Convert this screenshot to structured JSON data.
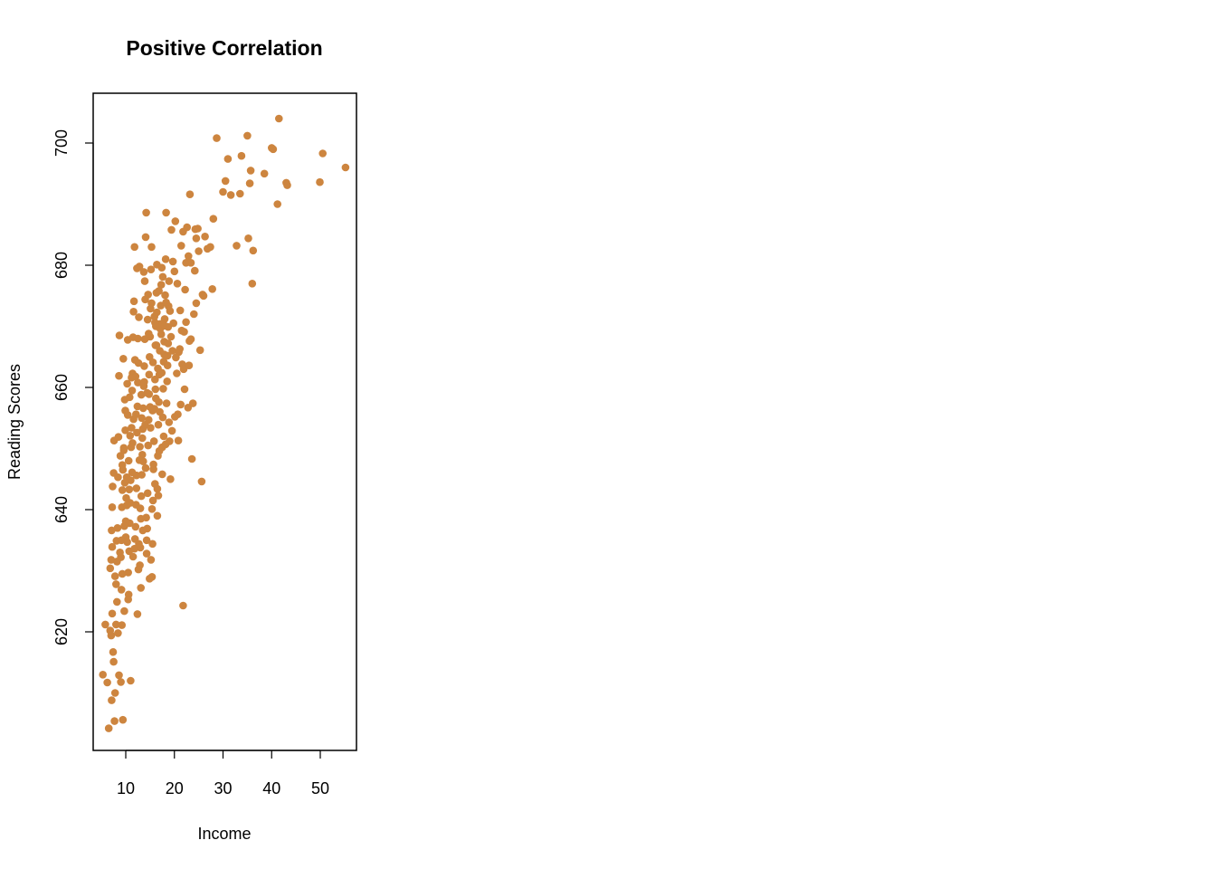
{
  "chart_data": {
    "type": "scatter",
    "title": "Positive Correlation",
    "xlabel": "Income",
    "ylabel": "Reading Scores",
    "xlim": [
      4,
      57
    ],
    "ylim": [
      600,
      708
    ],
    "x_ticks": [
      10,
      20,
      30,
      40,
      50
    ],
    "y_ticks": [
      620,
      640,
      660,
      680,
      700
    ],
    "point_color": "#CD853F",
    "grid": false,
    "legend": "none",
    "points": [
      [
        5.3,
        613.0
      ],
      [
        5.8,
        621.2
      ],
      [
        6.2,
        611.7
      ],
      [
        6.5,
        604.2
      ],
      [
        6.8,
        620.2
      ],
      [
        7.0,
        619.4
      ],
      [
        7.1,
        608.8
      ],
      [
        7.2,
        623.0
      ],
      [
        7.4,
        616.7
      ],
      [
        7.5,
        615.1
      ],
      [
        7.7,
        605.4
      ],
      [
        7.8,
        610.0
      ],
      [
        8.0,
        621.2
      ],
      [
        8.2,
        624.9
      ],
      [
        8.4,
        619.8
      ],
      [
        8.6,
        612.9
      ],
      [
        9.0,
        611.8
      ],
      [
        9.2,
        621.1
      ],
      [
        9.4,
        605.6
      ],
      [
        9.7,
        623.4
      ],
      [
        6.8,
        630.4
      ],
      [
        7.0,
        631.8
      ],
      [
        7.1,
        636.6
      ],
      [
        7.2,
        633.9
      ],
      [
        7.2,
        640.4
      ],
      [
        7.3,
        643.8
      ],
      [
        7.5,
        646.0
      ],
      [
        7.6,
        651.3
      ],
      [
        7.8,
        629.1
      ],
      [
        8.0,
        627.8
      ],
      [
        8.1,
        634.9
      ],
      [
        8.3,
        637.0
      ],
      [
        8.4,
        645.3
      ],
      [
        8.5,
        651.9
      ],
      [
        8.6,
        661.9
      ],
      [
        8.7,
        668.5
      ],
      [
        8.9,
        648.8
      ],
      [
        9.0,
        632.2
      ],
      [
        9.1,
        626.9
      ],
      [
        9.2,
        640.4
      ],
      [
        9.3,
        643.2
      ],
      [
        9.4,
        646.5
      ],
      [
        9.5,
        664.7
      ],
      [
        9.6,
        649.7
      ],
      [
        9.8,
        658.0
      ],
      [
        9.9,
        656.2
      ],
      [
        10.0,
        635.5
      ],
      [
        10.0,
        638.1
      ],
      [
        10.1,
        641.9
      ],
      [
        10.2,
        645.3
      ],
      [
        10.3,
        660.6
      ],
      [
        10.4,
        667.8
      ],
      [
        10.5,
        629.7
      ],
      [
        10.6,
        626.1
      ],
      [
        10.7,
        633.2
      ],
      [
        10.8,
        637.8
      ],
      [
        10.9,
        641.1
      ],
      [
        11.0,
        644.8
      ],
      [
        11.1,
        650.2
      ],
      [
        11.2,
        653.4
      ],
      [
        11.3,
        659.5
      ],
      [
        11.4,
        662.3
      ],
      [
        11.5,
        668.2
      ],
      [
        11.6,
        672.4
      ],
      [
        11.7,
        674.1
      ],
      [
        11.8,
        683.0
      ],
      [
        11.9,
        635.2
      ],
      [
        12.0,
        637.2
      ],
      [
        12.1,
        640.8
      ],
      [
        12.2,
        645.6
      ],
      [
        12.3,
        652.6
      ],
      [
        12.4,
        656.9
      ],
      [
        12.5,
        660.8
      ],
      [
        12.6,
        664.0
      ],
      [
        12.7,
        671.5
      ],
      [
        12.8,
        679.8
      ],
      [
        12.9,
        630.9
      ],
      [
        13.0,
        633.8
      ],
      [
        13.1,
        638.5
      ],
      [
        13.2,
        642.2
      ],
      [
        13.3,
        645.7
      ],
      [
        13.4,
        649.0
      ],
      [
        13.5,
        653.2
      ],
      [
        13.6,
        656.6
      ],
      [
        13.7,
        660.2
      ],
      [
        13.8,
        663.5
      ],
      [
        13.9,
        667.9
      ],
      [
        14.0,
        674.4
      ],
      [
        14.1,
        684.6
      ],
      [
        14.2,
        688.6
      ],
      [
        14.3,
        632.8
      ],
      [
        14.4,
        636.9
      ],
      [
        14.5,
        642.7
      ],
      [
        14.6,
        650.5
      ],
      [
        14.7,
        654.7
      ],
      [
        14.8,
        658.9
      ],
      [
        14.9,
        665.0
      ],
      [
        15.0,
        668.3
      ],
      [
        15.1,
        672.9
      ],
      [
        15.2,
        679.3
      ],
      [
        15.3,
        683.0
      ],
      [
        15.4,
        629.0
      ],
      [
        15.5,
        634.4
      ],
      [
        15.6,
        641.5
      ],
      [
        15.7,
        646.6
      ],
      [
        15.8,
        651.2
      ],
      [
        15.9,
        656.5
      ],
      [
        16.0,
        661.3
      ],
      [
        16.1,
        666.9
      ],
      [
        16.2,
        670.0
      ],
      [
        16.3,
        675.5
      ],
      [
        16.4,
        680.1
      ],
      [
        16.5,
        643.4
      ],
      [
        16.6,
        648.8
      ],
      [
        16.7,
        653.9
      ],
      [
        16.8,
        657.6
      ],
      [
        16.9,
        662.1
      ],
      [
        17.0,
        666.0
      ],
      [
        17.1,
        669.6
      ],
      [
        17.2,
        673.4
      ],
      [
        17.3,
        676.8
      ],
      [
        17.4,
        679.6
      ],
      [
        17.5,
        650.2
      ],
      [
        17.6,
        655.1
      ],
      [
        17.7,
        659.8
      ],
      [
        17.8,
        664.2
      ],
      [
        17.9,
        667.5
      ],
      [
        18.0,
        671.2
      ],
      [
        18.1,
        675.1
      ],
      [
        18.2,
        681.0
      ],
      [
        18.3,
        688.6
      ],
      [
        18.4,
        657.4
      ],
      [
        18.5,
        661.0
      ],
      [
        18.6,
        665.2
      ],
      [
        18.7,
        669.9
      ],
      [
        18.8,
        673.3
      ],
      [
        18.9,
        677.4
      ],
      [
        19.0,
        651.2
      ],
      [
        19.2,
        645.0
      ],
      [
        19.4,
        685.8
      ],
      [
        19.6,
        666.0
      ],
      [
        19.8,
        670.5
      ],
      [
        20.0,
        679.0
      ],
      [
        20.2,
        687.2
      ],
      [
        20.5,
        662.3
      ],
      [
        20.7,
        655.6
      ],
      [
        20.9,
        665.8
      ],
      [
        21.2,
        672.6
      ],
      [
        21.4,
        683.2
      ],
      [
        21.6,
        663.8
      ],
      [
        21.8,
        624.3
      ],
      [
        22.0,
        669.1
      ],
      [
        22.2,
        676.0
      ],
      [
        22.4,
        680.4
      ],
      [
        22.6,
        686.2
      ],
      [
        22.8,
        656.7
      ],
      [
        23.0,
        663.6
      ],
      [
        23.2,
        691.6
      ],
      [
        23.4,
        667.9
      ],
      [
        23.6,
        648.3
      ],
      [
        23.8,
        657.4
      ],
      [
        24.0,
        672.0
      ],
      [
        24.2,
        679.1
      ],
      [
        24.5,
        684.4
      ],
      [
        24.8,
        686.0
      ],
      [
        25.0,
        682.3
      ],
      [
        25.3,
        666.1
      ],
      [
        25.6,
        644.6
      ],
      [
        25.8,
        675.2
      ],
      [
        26.3,
        684.7
      ],
      [
        26.8,
        682.7
      ],
      [
        27.4,
        683.0
      ],
      [
        27.8,
        676.1
      ],
      [
        28.0,
        687.6
      ],
      [
        28.7,
        700.8
      ],
      [
        30.0,
        692.0
      ],
      [
        30.5,
        693.8
      ],
      [
        31.0,
        697.4
      ],
      [
        31.6,
        691.5
      ],
      [
        32.8,
        683.2
      ],
      [
        33.5,
        691.7
      ],
      [
        33.8,
        697.9
      ],
      [
        35.0,
        701.2
      ],
      [
        35.2,
        684.4
      ],
      [
        35.5,
        693.4
      ],
      [
        35.7,
        695.5
      ],
      [
        36.0,
        677.0
      ],
      [
        36.2,
        682.4
      ],
      [
        38.5,
        695.0
      ],
      [
        40.0,
        699.2
      ],
      [
        40.3,
        699.0
      ],
      [
        41.2,
        690.0
      ],
      [
        41.5,
        704.0
      ],
      [
        43.0,
        693.5
      ],
      [
        43.2,
        693.1
      ],
      [
        49.9,
        693.6
      ],
      [
        50.5,
        698.3
      ],
      [
        55.2,
        696.0
      ],
      [
        11.0,
        612.0
      ],
      [
        12.4,
        622.9
      ],
      [
        10.5,
        625.3
      ],
      [
        13.1,
        627.2
      ],
      [
        14.9,
        628.7
      ],
      [
        9.3,
        629.5
      ],
      [
        12.6,
        630.2
      ],
      [
        15.2,
        631.8
      ],
      [
        11.8,
        633.6
      ],
      [
        14.3,
        635.0
      ],
      [
        16.5,
        639.0
      ],
      [
        13.0,
        640.2
      ],
      [
        12.2,
        643.5
      ],
      [
        16.0,
        644.2
      ],
      [
        14.1,
        646.8
      ],
      [
        13.6,
        647.9
      ],
      [
        12.9,
        650.3
      ],
      [
        10.9,
        652.1
      ],
      [
        11.6,
        654.8
      ],
      [
        13.3,
        655.0
      ],
      [
        15.0,
        656.8
      ],
      [
        14.4,
        659.1
      ],
      [
        12.0,
        661.8
      ],
      [
        16.6,
        663.1
      ],
      [
        15.6,
        664.1
      ],
      [
        17.9,
        665.4
      ],
      [
        16.3,
        666.9
      ],
      [
        14.7,
        668.8
      ],
      [
        17.1,
        670.4
      ],
      [
        15.9,
        671.6
      ],
      [
        19.1,
        672.5
      ],
      [
        18.3,
        673.9
      ],
      [
        16.8,
        675.8
      ],
      [
        20.6,
        677.0
      ],
      [
        17.6,
        678.1
      ],
      [
        13.7,
        678.9
      ],
      [
        19.7,
        680.6
      ],
      [
        22.9,
        681.5
      ],
      [
        21.8,
        685.5
      ],
      [
        15.5,
        656.2
      ],
      [
        14.0,
        653.9
      ],
      [
        13.4,
        651.7
      ],
      [
        12.8,
        648.1
      ],
      [
        11.3,
        646.1
      ],
      [
        10.7,
        643.3
      ],
      [
        10.2,
        640.7
      ],
      [
        9.7,
        637.3
      ],
      [
        9.1,
        635.0
      ],
      [
        8.8,
        633.0
      ],
      [
        8.2,
        631.5
      ],
      [
        16.1,
        659.7
      ],
      [
        17.4,
        662.4
      ],
      [
        18.6,
        663.6
      ],
      [
        20.3,
        664.9
      ],
      [
        21.1,
        666.3
      ],
      [
        19.3,
        668.3
      ],
      [
        18.0,
        670.1
      ],
      [
        16.4,
        672.3
      ],
      [
        15.3,
        673.8
      ],
      [
        14.6,
        675.2
      ],
      [
        13.9,
        677.4
      ],
      [
        12.3,
        679.5
      ],
      [
        11.2,
        661.6
      ],
      [
        10.8,
        658.4
      ],
      [
        10.4,
        655.5
      ],
      [
        9.9,
        653.0
      ],
      [
        9.6,
        650.1
      ],
      [
        9.3,
        647.3
      ],
      [
        15.7,
        647.4
      ],
      [
        16.9,
        649.6
      ],
      [
        17.8,
        652.0
      ],
      [
        18.9,
        654.3
      ],
      [
        20.1,
        655.2
      ],
      [
        21.3,
        657.2
      ],
      [
        22.1,
        659.7
      ],
      [
        21.9,
        663.0
      ],
      [
        23.1,
        667.6
      ],
      [
        22.4,
        670.7
      ],
      [
        24.5,
        673.8
      ],
      [
        26.0,
        675.0
      ],
      [
        12.5,
        668.0
      ],
      [
        11.9,
        664.5
      ],
      [
        13.8,
        660.9
      ],
      [
        14.8,
        662.1
      ],
      [
        16.2,
        658.2
      ],
      [
        17.0,
        656.0
      ],
      [
        15.1,
        653.4
      ],
      [
        13.2,
        658.8
      ],
      [
        12.1,
        655.6
      ],
      [
        11.4,
        650.9
      ],
      [
        10.6,
        648.0
      ],
      [
        9.8,
        644.4
      ],
      [
        10.3,
        634.7
      ],
      [
        11.5,
        632.3
      ],
      [
        12.7,
        634.4
      ],
      [
        13.5,
        636.6
      ],
      [
        14.2,
        638.7
      ],
      [
        15.4,
        640.1
      ],
      [
        16.7,
        642.3
      ],
      [
        17.5,
        645.8
      ],
      [
        18.2,
        650.7
      ],
      [
        19.5,
        652.9
      ],
      [
        20.8,
        651.3
      ],
      [
        21.5,
        669.3
      ],
      [
        23.4,
        680.4
      ],
      [
        24.3,
        685.9
      ],
      [
        18.7,
        667.2
      ],
      [
        17.3,
        668.7
      ],
      [
        16.0,
        670.6
      ],
      [
        14.5,
        671.1
      ]
    ]
  }
}
